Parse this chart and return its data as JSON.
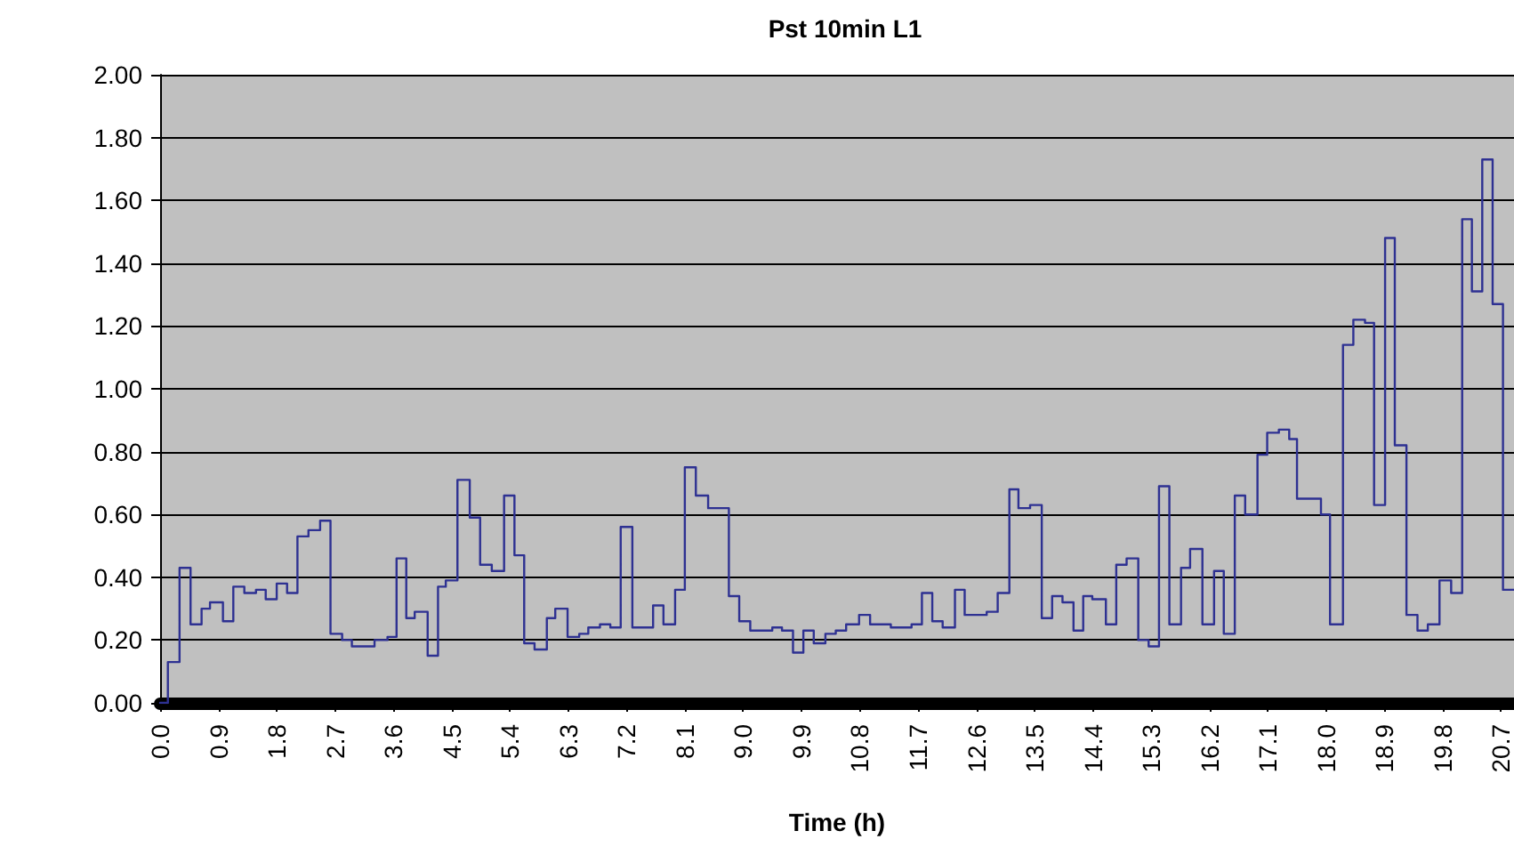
{
  "chart_data": {
    "type": "step",
    "title": "Pst 10min L1",
    "xlabel": "Time (h)",
    "x": [
      0,
      0.12,
      0.3,
      0.47,
      0.64,
      0.77,
      0.97,
      1.13,
      1.3,
      1.48,
      1.63,
      1.8,
      1.96,
      2.12,
      2.29,
      2.47,
      2.63,
      2.81,
      2.96,
      3.31,
      3.51,
      3.65,
      3.8,
      3.93,
      4.13,
      4.29,
      4.41,
      4.59,
      4.78,
      4.94,
      5.12,
      5.31,
      5.47,
      5.62,
      5.78,
      5.97,
      6.1,
      6.29,
      6.47,
      6.61,
      6.79,
      6.95,
      7.11,
      7.29,
      7.61,
      7.77,
      7.95,
      8.1,
      8.27,
      8.46,
      8.78,
      8.94,
      9.11,
      9.45,
      9.6,
      9.77,
      9.93,
      10.09,
      10.27,
      10.43,
      10.59,
      10.79,
      10.96,
      11.28,
      11.6,
      11.76,
      11.92,
      12.08,
      12.27,
      12.42,
      12.76,
      12.93,
      13.11,
      13.25,
      13.43,
      13.61,
      13.77,
      13.93,
      14.1,
      14.25,
      14.39,
      14.6,
      14.76,
      14.92,
      15.1,
      15.26,
      15.42,
      15.58,
      15.76,
      15.9,
      16.09,
      16.27,
      16.42,
      16.59,
      16.75,
      16.94,
      17.09,
      17.27,
      17.43,
      17.55,
      17.92,
      18.06,
      18.26,
      18.42,
      18.6,
      18.74,
      18.91,
      19.06,
      19.24,
      19.41,
      19.57,
      19.75,
      19.93,
      20.1,
      20.25,
      20.41,
      20.57,
      20.73,
      20.9
    ],
    "series": [
      {
        "color": "#2e3192",
        "values": [
          0,
          0.13,
          0.43,
          0.25,
          0.3,
          0.32,
          0.26,
          0.37,
          0.35,
          0.36,
          0.33,
          0.38,
          0.35,
          0.53,
          0.55,
          0.58,
          0.22,
          0.2,
          0.18,
          0.2,
          0.21,
          0.46,
          0.27,
          0.29,
          0.15,
          0.37,
          0.39,
          0.71,
          0.59,
          0.44,
          0.42,
          0.66,
          0.47,
          0.19,
          0.17,
          0.27,
          0.3,
          0.21,
          0.22,
          0.24,
          0.25,
          0.24,
          0.56,
          0.24,
          0.31,
          0.25,
          0.36,
          0.75,
          0.66,
          0.62,
          0.34,
          0.26,
          0.23,
          0.24,
          0.23,
          0.16,
          0.23,
          0.19,
          0.22,
          0.23,
          0.25,
          0.28,
          0.25,
          0.24,
          0.25,
          0.35,
          0.26,
          0.24,
          0.36,
          0.28,
          0.29,
          0.35,
          0.68,
          0.62,
          0.63,
          0.27,
          0.34,
          0.32,
          0.23,
          0.34,
          0.33,
          0.25,
          0.44,
          0.46,
          0.2,
          0.18,
          0.69,
          0.25,
          0.43,
          0.49,
          0.25,
          0.42,
          0.22,
          0.66,
          0.6,
          0.79,
          0.86,
          0.87,
          0.84,
          0.65,
          0.6,
          0.25,
          1.14,
          1.22,
          1.21,
          0.63,
          1.48,
          0.82,
          0.28,
          0.23,
          0.25,
          0.39,
          0.35,
          1.54,
          1.31,
          1.73,
          1.27,
          0.36,
          0.36
        ]
      }
    ],
    "xlim": [
      0,
      20.9
    ],
    "xticks": [
      {
        "value": 0,
        "label": "0.0"
      },
      {
        "value": 0.9,
        "label": "0.9"
      },
      {
        "value": 1.8,
        "label": "1.8"
      },
      {
        "value": 2.7,
        "label": "2.7"
      },
      {
        "value": 3.6,
        "label": "3.6"
      },
      {
        "value": 4.5,
        "label": "4.5"
      },
      {
        "value": 5.4,
        "label": "5.4"
      },
      {
        "value": 6.3,
        "label": "6.3"
      },
      {
        "value": 7.2,
        "label": "7.2"
      },
      {
        "value": 8.1,
        "label": "8.1"
      },
      {
        "value": 9,
        "label": "9.0"
      },
      {
        "value": 9.9,
        "label": "9.9"
      },
      {
        "value": 10.8,
        "label": "10.8"
      },
      {
        "value": 11.7,
        "label": "11.7"
      },
      {
        "value": 12.6,
        "label": "12.6"
      },
      {
        "value": 13.5,
        "label": "13.5"
      },
      {
        "value": 14.4,
        "label": "14.4"
      },
      {
        "value": 15.3,
        "label": "15.3"
      },
      {
        "value": 16.2,
        "label": "16.2"
      },
      {
        "value": 17.1,
        "label": "17.1"
      },
      {
        "value": 18,
        "label": "18.0"
      },
      {
        "value": 18.9,
        "label": "18.9"
      },
      {
        "value": 19.8,
        "label": "19.8"
      },
      {
        "value": 20.7,
        "label": "20.7"
      }
    ],
    "ylim": [
      0,
      2
    ],
    "yticks": [
      {
        "value": 0,
        "label": "0.00"
      },
      {
        "value": 0.2,
        "label": "0.20"
      },
      {
        "value": 0.4,
        "label": "0.40"
      },
      {
        "value": 0.6,
        "label": "0.60"
      },
      {
        "value": 0.8,
        "label": "0.80"
      },
      {
        "value": 1,
        "label": "1.00"
      },
      {
        "value": 1.2,
        "label": "1.20"
      },
      {
        "value": 1.4,
        "label": "1.40"
      },
      {
        "value": 1.6,
        "label": "1.60"
      },
      {
        "value": 1.8,
        "label": "1.80"
      },
      {
        "value": 2,
        "label": "2.00"
      }
    ],
    "grid": "y",
    "marker": "none",
    "line_style": "solid"
  }
}
